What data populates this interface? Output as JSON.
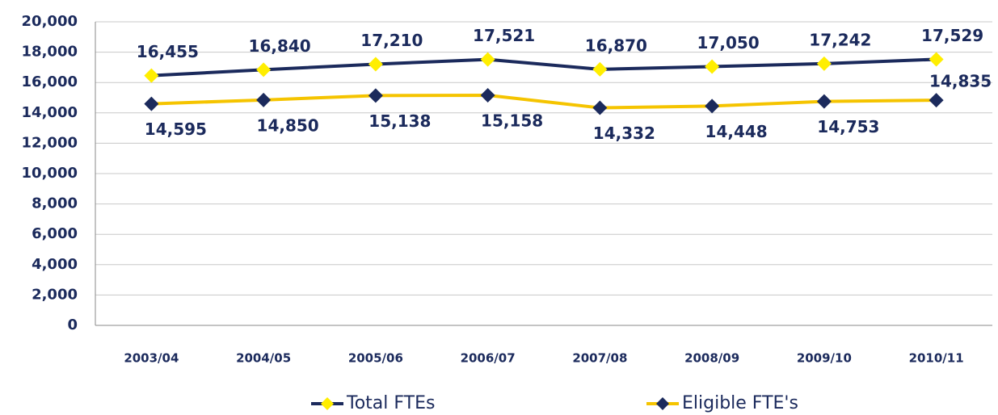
{
  "chart_data": {
    "type": "line",
    "categories": [
      "2003/04",
      "2004/05",
      "2005/06",
      "2006/07",
      "2007/08",
      "2008/09",
      "2009/10",
      "2010/11"
    ],
    "series": [
      {
        "name": "Total FTEs",
        "color": "#1b2a5c",
        "marker_color": "#ffee00",
        "values": [
          16455,
          16840,
          17210,
          17521,
          16870,
          17050,
          17242,
          17529
        ],
        "value_labels": [
          "16,455",
          "16,840",
          "17,210",
          "17,521",
          "16,870",
          "17,050",
          "17,242",
          "17,529"
        ]
      },
      {
        "name": "Eligible FTE's",
        "color": "#f5c400",
        "marker_color": "#1b2a5c",
        "values": [
          14595,
          14850,
          15138,
          15158,
          14332,
          14448,
          14753,
          14835
        ],
        "value_labels": [
          "14,595",
          "14,850",
          "15,138",
          "15,158",
          "14,332",
          "14,448",
          "14,753",
          "14,835"
        ]
      }
    ],
    "ylim": [
      0,
      20000
    ],
    "yticks": [
      0,
      {
        "value": 2000,
        "label": "2,000"
      },
      {
        "value": 4000,
        "label": "4,000"
      },
      {
        "value": 6000,
        "label": "6,000"
      },
      {
        "value": 8000,
        "label": "8,000"
      },
      {
        "value": 10000,
        "label": "10,000"
      },
      {
        "value": 12000,
        "label": "12,000"
      },
      {
        "value": 14000,
        "label": "14,000"
      },
      {
        "value": 16000,
        "label": "16,000"
      },
      {
        "value": 18000,
        "label": "18,000"
      },
      {
        "value": 20000,
        "label": "20,000"
      }
    ],
    "grid": true,
    "legend": "bottom"
  }
}
